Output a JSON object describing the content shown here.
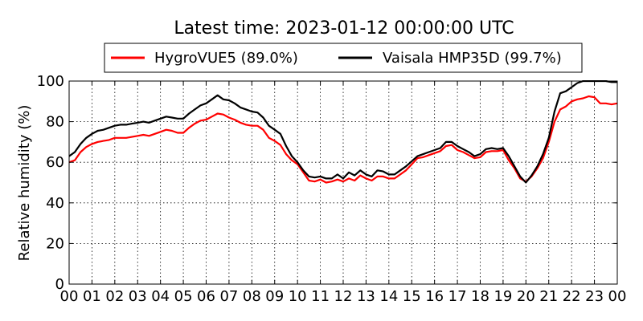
{
  "chart_data": {
    "type": "line",
    "title": "Latest time: 2023-01-12 00:00:00 UTC",
    "xlabel": "",
    "ylabel": "Relative humidity (%)",
    "xlim": [
      0,
      24
    ],
    "ylim": [
      0,
      100
    ],
    "x_ticks": [
      "00",
      "01",
      "02",
      "03",
      "04",
      "05",
      "06",
      "07",
      "08",
      "09",
      "10",
      "11",
      "12",
      "13",
      "14",
      "15",
      "16",
      "17",
      "18",
      "19",
      "20",
      "21",
      "22",
      "23",
      "00"
    ],
    "y_ticks": [
      "0",
      "20",
      "40",
      "60",
      "80",
      "100"
    ],
    "grid": true,
    "legend_position": "top-center",
    "series": [
      {
        "name": "HygroVUE5 (89.0%)",
        "color": "#ff0000",
        "x": [
          0,
          0.25,
          0.5,
          0.75,
          1,
          1.25,
          1.5,
          1.75,
          2,
          2.25,
          2.5,
          2.75,
          3,
          3.25,
          3.5,
          3.75,
          4,
          4.25,
          4.5,
          4.75,
          5,
          5.25,
          5.5,
          5.75,
          6,
          6.25,
          6.5,
          6.75,
          7,
          7.25,
          7.5,
          7.75,
          8,
          8.25,
          8.5,
          8.75,
          9,
          9.25,
          9.5,
          9.75,
          10,
          10.25,
          10.5,
          10.75,
          11,
          11.25,
          11.5,
          11.75,
          12,
          12.25,
          12.5,
          12.75,
          13,
          13.25,
          13.5,
          13.75,
          14,
          14.25,
          14.5,
          14.75,
          15,
          15.25,
          15.5,
          15.75,
          16,
          16.25,
          16.5,
          16.75,
          17,
          17.25,
          17.5,
          17.75,
          18,
          18.25,
          18.5,
          18.75,
          19,
          19.25,
          19.5,
          19.75,
          20,
          20.25,
          20.5,
          20.75,
          21,
          21.25,
          21.5,
          21.75,
          22,
          22.25,
          22.5,
          22.75,
          23,
          23.25,
          23.5,
          23.75,
          24
        ],
        "values": [
          60,
          61,
          65,
          67.5,
          69,
          70,
          70.5,
          71,
          72,
          72,
          72,
          72.5,
          73,
          73.5,
          73,
          74,
          75,
          76,
          75.5,
          74.5,
          74.5,
          77,
          79,
          80.5,
          81,
          82.5,
          84,
          83.5,
          82,
          81,
          79.5,
          78.5,
          78,
          78,
          76,
          72,
          70.5,
          68.5,
          64,
          61,
          59,
          55,
          51,
          50.5,
          51.5,
          50,
          50.5,
          51.5,
          50.5,
          52,
          51,
          53.5,
          52,
          51,
          53,
          53,
          52,
          52,
          54,
          56,
          59,
          62,
          62.5,
          63.5,
          64.5,
          65.5,
          68,
          68.5,
          66,
          65,
          63.5,
          62,
          62.5,
          65,
          65.5,
          65.5,
          66,
          61,
          57,
          52,
          50.5,
          53,
          57,
          62,
          70,
          80,
          86,
          87.5,
          90,
          91,
          91.5,
          92.5,
          92,
          89,
          89,
          88.5,
          89
        ]
      },
      {
        "name": "Vaisala HMP35D (99.7%)",
        "color": "#000000",
        "x": [
          0,
          0.25,
          0.5,
          0.75,
          1,
          1.25,
          1.5,
          1.75,
          2,
          2.25,
          2.5,
          2.75,
          3,
          3.25,
          3.5,
          3.75,
          4,
          4.25,
          4.5,
          4.75,
          5,
          5.25,
          5.5,
          5.75,
          6,
          6.25,
          6.5,
          6.75,
          7,
          7.25,
          7.5,
          7.75,
          8,
          8.25,
          8.5,
          8.75,
          9,
          9.25,
          9.5,
          9.75,
          10,
          10.25,
          10.5,
          10.75,
          11,
          11.25,
          11.5,
          11.75,
          12,
          12.25,
          12.5,
          12.75,
          13,
          13.25,
          13.5,
          13.75,
          14,
          14.25,
          14.5,
          14.75,
          15,
          15.25,
          15.5,
          15.75,
          16,
          16.25,
          16.5,
          16.75,
          17,
          17.25,
          17.5,
          17.75,
          18,
          18.25,
          18.5,
          18.75,
          19,
          19.25,
          19.5,
          19.75,
          20,
          20.25,
          20.5,
          20.75,
          21,
          21.25,
          21.5,
          21.75,
          22,
          22.25,
          22.5,
          22.75,
          23,
          23.25,
          23.5,
          23.75,
          24
        ],
        "values": [
          63,
          65,
          69,
          72,
          74,
          75.5,
          76,
          77,
          78,
          78.5,
          78.5,
          79,
          79.5,
          80,
          79.5,
          80.5,
          81.5,
          82.5,
          82,
          81.5,
          81.5,
          84,
          86,
          88,
          89,
          91,
          93,
          91,
          90.5,
          89,
          87,
          86,
          85,
          84.5,
          82,
          78,
          76,
          74,
          68,
          63,
          60,
          56,
          53,
          52.5,
          53,
          52,
          52,
          54,
          52,
          55,
          53.5,
          56,
          54,
          53,
          56,
          55.5,
          54,
          54,
          56,
          58,
          60.5,
          63,
          64,
          65,
          66,
          67,
          70,
          70,
          68,
          66.5,
          65,
          63,
          64,
          66.5,
          67,
          66.5,
          67,
          63,
          58,
          53,
          50,
          53.5,
          58,
          64,
          72,
          85,
          94,
          95,
          97,
          99,
          100,
          100,
          100,
          100,
          100,
          99.5,
          99.5
        ]
      }
    ]
  }
}
